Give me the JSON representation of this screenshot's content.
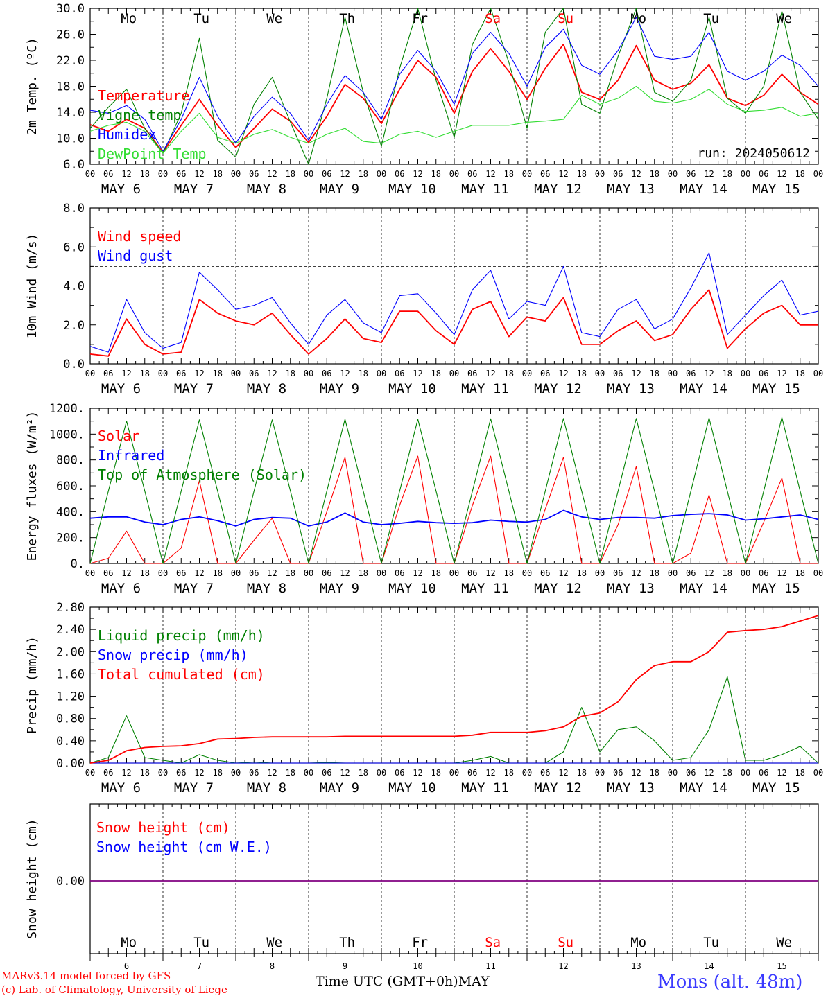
{
  "footer": {
    "model_line1": "MARv3.14 model forced by GFS",
    "model_line2": "(c) Lab. of Climatology, University of Liege",
    "xlabel": "Time UTC (GMT+0h)",
    "month": "MAY",
    "station": "Mons (alt. 48m)"
  },
  "colors": {
    "red": "#ff0000",
    "green": "#008000",
    "blue": "#0000ff",
    "lightgreen": "#33dd33",
    "weekend": "#ff0000",
    "purple": "#800080"
  },
  "axis": {
    "hours": [
      "00",
      "06",
      "12",
      "18"
    ],
    "end_hour": "00",
    "dates": [
      "MAY  6",
      "MAY  7",
      "MAY  8",
      "MAY  9",
      "MAY 10",
      "MAY 11",
      "MAY 12",
      "MAY 13",
      "MAY 14",
      "MAY 15"
    ],
    "weekdays": [
      "Mo",
      "Tu",
      "We",
      "Th",
      "Fr",
      "Sa",
      "Su",
      "Mo",
      "Tu",
      "We"
    ],
    "weekend_index": [
      5,
      6
    ],
    "day_numbers": [
      "6",
      "7",
      "8",
      "9",
      "10",
      "11",
      "12",
      "13",
      "14",
      "15"
    ]
  },
  "chart_data": [
    {
      "type": "line",
      "id": "temp",
      "ylabel": "2m Temp. (ºC)",
      "ylim": [
        6,
        32
      ],
      "yticks": [
        "6.0",
        "10.0",
        "14.0",
        "18.0",
        "22.0",
        "26.0",
        "30.0"
      ],
      "annotation": "run: 2024050612",
      "x_days": [
        0,
        0.25,
        0.5,
        0.75,
        1,
        1.25,
        1.5,
        1.75,
        2,
        2.25,
        2.5,
        2.75,
        3,
        3.25,
        3.5,
        3.75,
        4,
        4.25,
        4.5,
        4.75,
        5,
        5.25,
        5.5,
        5.75,
        6,
        6.25,
        6.5,
        6.75,
        7,
        7.25,
        7.5,
        7.75,
        8,
        8.25,
        8.5,
        8.75,
        9,
        9.25,
        9.5,
        9.75,
        10
      ],
      "series": [
        {
          "name": "Temperature",
          "color": "#ff0000",
          "values": [
            12.6,
            11.5,
            13.5,
            12.0,
            8.0,
            12.5,
            16.8,
            12.5,
            8.8,
            12.0,
            15.2,
            13.2,
            9.6,
            14.0,
            19.3,
            17.0,
            12.8,
            18.5,
            23.3,
            20.5,
            14.5,
            21.5,
            25.3,
            21.5,
            16.8,
            22.0,
            26.0,
            18.0,
            16.8,
            20.0,
            25.8,
            20.0,
            18.5,
            19.5,
            22.6,
            17.0,
            15.8,
            17.5,
            21.0,
            18.0,
            16.0
          ]
        },
        {
          "name": "Vigne temp",
          "color": "#008000",
          "values": [
            12.0,
            15.5,
            18.5,
            12.0,
            7.8,
            14.5,
            27.0,
            10.0,
            7.2,
            16.0,
            20.5,
            13.0,
            6.0,
            17.0,
            30.5,
            18.0,
            9.0,
            22.0,
            32.0,
            20.0,
            10.5,
            26.0,
            32.5,
            23.0,
            12.0,
            28.0,
            32.8,
            16.0,
            14.5,
            24.0,
            32.5,
            18.0,
            16.5,
            20.0,
            30.5,
            17.0,
            14.5,
            19.0,
            31.5,
            18.0,
            13.5
          ]
        },
        {
          "name": "Humidex",
          "color": "#0000ff",
          "values": [
            15.0,
            14.5,
            15.8,
            13.5,
            8.2,
            13.5,
            20.5,
            14.0,
            9.5,
            14.0,
            17.2,
            14.5,
            10.0,
            16.0,
            20.8,
            18.0,
            13.5,
            21.0,
            25.0,
            21.5,
            16.0,
            24.5,
            28.0,
            24.5,
            19.0,
            25.5,
            28.5,
            22.5,
            21.0,
            25.0,
            30.5,
            24.0,
            23.5,
            24.0,
            28.0,
            21.5,
            20.0,
            21.5,
            24.2,
            22.5,
            19.0
          ]
        },
        {
          "name": "DewPoint Temp",
          "color": "#33dd33",
          "values": [
            11.5,
            12.5,
            13.0,
            11.5,
            7.8,
            11.5,
            14.5,
            10.5,
            9.5,
            11.0,
            11.8,
            10.5,
            9.5,
            11.0,
            12.0,
            9.8,
            9.5,
            11.0,
            11.5,
            10.5,
            11.5,
            12.5,
            12.5,
            12.5,
            13.0,
            13.2,
            13.5,
            17.5,
            16.0,
            17.0,
            19.0,
            16.5,
            16.2,
            16.8,
            18.5,
            16.0,
            14.8,
            15.0,
            15.5,
            14.0,
            14.5
          ]
        }
      ]
    },
    {
      "type": "line",
      "id": "wind",
      "ylabel": "10m Wind (m/s)",
      "ylim": [
        0,
        8
      ],
      "yticks": [
        "0.0",
        "2.0",
        "4.0",
        "6.0",
        "8.0"
      ],
      "ref_line": 5,
      "x_days": [
        0,
        0.25,
        0.5,
        0.75,
        1,
        1.25,
        1.5,
        1.75,
        2,
        2.25,
        2.5,
        2.75,
        3,
        3.25,
        3.5,
        3.75,
        4,
        4.25,
        4.5,
        4.75,
        5,
        5.25,
        5.5,
        5.75,
        6,
        6.25,
        6.5,
        6.75,
        7,
        7.25,
        7.5,
        7.75,
        8,
        8.25,
        8.5,
        8.75,
        9,
        9.25,
        9.5,
        9.75,
        10
      ],
      "series": [
        {
          "name": "Wind speed",
          "color": "#ff0000",
          "values": [
            0.5,
            0.4,
            2.3,
            1.0,
            0.5,
            0.6,
            3.3,
            2.6,
            2.2,
            2.0,
            2.6,
            1.5,
            0.5,
            1.3,
            2.3,
            1.3,
            1.1,
            2.7,
            2.7,
            1.7,
            1.0,
            2.8,
            3.2,
            1.4,
            2.4,
            2.2,
            3.4,
            1.0,
            1.0,
            1.7,
            2.2,
            1.2,
            1.5,
            2.8,
            3.8,
            0.8,
            1.8,
            2.6,
            3.0,
            2.0,
            2.0
          ]
        },
        {
          "name": "Wind gust",
          "color": "#0000ff",
          "values": [
            0.9,
            0.6,
            3.3,
            1.6,
            0.8,
            1.1,
            4.7,
            3.8,
            2.8,
            3.0,
            3.4,
            2.1,
            1.0,
            2.5,
            3.3,
            2.1,
            1.6,
            3.5,
            3.6,
            2.6,
            1.5,
            3.8,
            4.8,
            2.3,
            3.2,
            3.0,
            5.0,
            1.6,
            1.4,
            2.8,
            3.3,
            1.8,
            2.3,
            3.9,
            5.7,
            1.5,
            2.5,
            3.5,
            4.3,
            2.5,
            2.7
          ]
        }
      ]
    },
    {
      "type": "line",
      "id": "flux",
      "ylabel": "Energy fluxes (W/m²)",
      "ylim": [
        0,
        1200
      ],
      "yticks": [
        "0.",
        "200.",
        "400.",
        "600.",
        "800.",
        "1000.",
        "1200."
      ],
      "x_days": [
        0,
        0.25,
        0.5,
        0.75,
        1,
        1.25,
        1.5,
        1.75,
        2,
        2.25,
        2.5,
        2.75,
        3,
        3.25,
        3.5,
        3.75,
        4,
        4.25,
        4.5,
        4.75,
        5,
        5.25,
        5.5,
        5.75,
        6,
        6.25,
        6.5,
        6.75,
        7,
        7.25,
        7.5,
        7.75,
        8,
        8.25,
        8.5,
        8.75,
        9,
        9.25,
        9.5,
        9.75,
        10
      ],
      "series": [
        {
          "name": "Solar",
          "color": "#ff0000",
          "values": [
            0,
            40,
            250,
            0,
            0,
            120,
            640,
            0,
            0,
            180,
            350,
            0,
            0,
            400,
            820,
            0,
            0,
            450,
            830,
            0,
            0,
            450,
            830,
            0,
            0,
            420,
            820,
            0,
            0,
            300,
            750,
            0,
            0,
            80,
            530,
            0,
            0,
            320,
            660,
            0,
            0
          ]
        },
        {
          "name": "Infrared",
          "color": "#0000ff",
          "values": [
            350,
            360,
            360,
            320,
            300,
            340,
            360,
            330,
            290,
            340,
            355,
            350,
            290,
            320,
            390,
            320,
            300,
            310,
            325,
            315,
            310,
            315,
            335,
            325,
            320,
            340,
            410,
            360,
            340,
            355,
            355,
            350,
            370,
            380,
            385,
            375,
            335,
            345,
            360,
            375,
            340
          ]
        },
        {
          "name": "Top of Atmosphere (Solar)",
          "color": "#008000",
          "values": [
            0,
            560,
            1100,
            560,
            0,
            560,
            1110,
            560,
            0,
            560,
            1110,
            560,
            0,
            560,
            1115,
            560,
            0,
            560,
            1115,
            560,
            0,
            560,
            1118,
            560,
            0,
            560,
            1120,
            560,
            0,
            560,
            1120,
            560,
            0,
            560,
            1125,
            560,
            0,
            560,
            1128,
            560,
            0
          ]
        }
      ]
    },
    {
      "type": "line",
      "id": "precip",
      "ylabel": "Precip (mm/h)",
      "ylim": [
        0,
        2.8
      ],
      "yticks": [
        "0.00",
        "0.40",
        "0.80",
        "1.20",
        "1.60",
        "2.00",
        "2.40",
        "2.80"
      ],
      "x_days": [
        0,
        0.25,
        0.5,
        0.75,
        1,
        1.25,
        1.5,
        1.75,
        2,
        2.25,
        2.5,
        2.75,
        3,
        3.25,
        3.5,
        3.75,
        4,
        4.25,
        4.5,
        4.75,
        5,
        5.25,
        5.5,
        5.75,
        6,
        6.25,
        6.5,
        6.75,
        7,
        7.25,
        7.5,
        7.75,
        8,
        8.25,
        8.5,
        8.75,
        9,
        9.25,
        9.5,
        9.75,
        10
      ],
      "series": [
        {
          "name": "Liquid precip (mm/h)",
          "color": "#008000",
          "values": [
            0,
            0.1,
            0.85,
            0.1,
            0.05,
            0,
            0.15,
            0.05,
            0,
            0.02,
            0,
            0,
            0,
            0.01,
            0,
            0,
            0,
            0,
            0,
            0,
            0,
            0.05,
            0.12,
            0,
            0,
            0,
            0.2,
            1.0,
            0.2,
            0.6,
            0.65,
            0.4,
            0.05,
            0.1,
            0.6,
            1.55,
            0.05,
            0.05,
            0.15,
            0.3,
            0
          ]
        },
        {
          "name": "Snow precip (mm/h)",
          "color": "#0000ff",
          "values": [
            0,
            0,
            0,
            0,
            0,
            0,
            0,
            0,
            0,
            0,
            0,
            0,
            0,
            0,
            0,
            0,
            0,
            0,
            0,
            0,
            0,
            0,
            0,
            0,
            0,
            0,
            0,
            0,
            0,
            0,
            0,
            0,
            0,
            0,
            0,
            0,
            0,
            0,
            0,
            0,
            0
          ]
        },
        {
          "name": "Total cumulated (cm)",
          "color": "#ff0000",
          "values": [
            0,
            0.05,
            0.22,
            0.28,
            0.3,
            0.31,
            0.35,
            0.43,
            0.44,
            0.46,
            0.47,
            0.47,
            0.47,
            0.47,
            0.48,
            0.48,
            0.48,
            0.48,
            0.48,
            0.48,
            0.48,
            0.5,
            0.55,
            0.55,
            0.55,
            0.58,
            0.65,
            0.84,
            0.9,
            1.1,
            1.5,
            1.75,
            1.82,
            1.82,
            2.0,
            2.35,
            2.38,
            2.4,
            2.45,
            2.55,
            2.65
          ]
        }
      ]
    },
    {
      "type": "line",
      "id": "snow",
      "ylabel": "Snow height (cm)",
      "yticks": [
        "0.00"
      ],
      "x_days": [
        0,
        10
      ],
      "series": [
        {
          "name": "Snow height (cm)",
          "color": "#ff0000",
          "values": [
            0,
            0
          ]
        },
        {
          "name": "Snow height (cm W.E.)",
          "color": "#0000ff",
          "values": [
            0,
            0
          ]
        }
      ]
    }
  ]
}
